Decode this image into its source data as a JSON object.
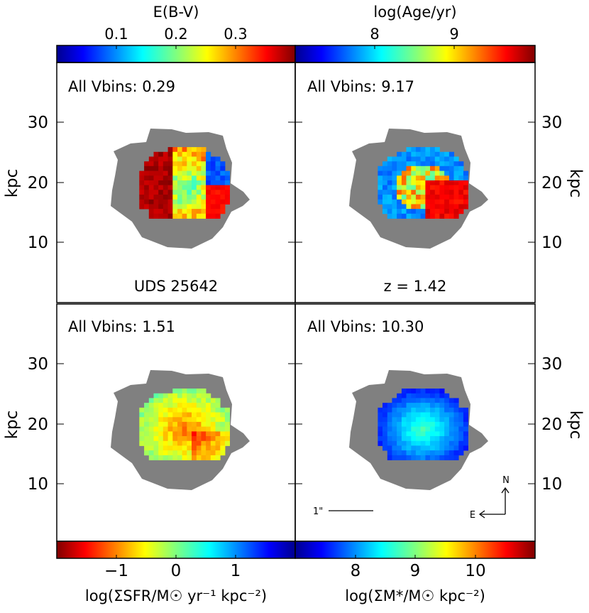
{
  "chart_data": {
    "type": "heatmap",
    "object_label": "UDS 25642",
    "redshift_label": "z = 1.42",
    "compass": {
      "north": "N",
      "east": "E"
    },
    "scale_bar_label": "1\"",
    "panels": [
      {
        "id": "ebv",
        "quantity": "E(B-V)",
        "summary": "All Vbins: 0.29",
        "colorbar": {
          "label": "E(B-V)",
          "position": "top",
          "ticks": [
            "0.1",
            "0.2",
            "0.3"
          ],
          "tick_values": [
            0.1,
            0.2,
            0.3
          ],
          "range": [
            0.0,
            0.4
          ],
          "colormap": "jet"
        },
        "ylabel": "kpc",
        "yticks": [
          "10",
          "20",
          "30"
        ],
        "ylabel_side": "left"
      },
      {
        "id": "age",
        "quantity": "log(Age/yr)",
        "summary": "All Vbins: 9.17",
        "colorbar": {
          "label": "log(Age/yr)",
          "position": "top",
          "ticks": [
            "8",
            "9"
          ],
          "tick_values": [
            8,
            9
          ],
          "range": [
            7.25,
            9.9
          ],
          "colormap": "jet"
        },
        "ylabel": "kpc",
        "yticks": [
          "10",
          "20",
          "30"
        ],
        "ylabel_side": "right"
      },
      {
        "id": "sfr",
        "quantity": "log(ΣSFR/M☉ yr⁻¹ kpc⁻²)",
        "summary": "All Vbins: 1.51",
        "colorbar": {
          "label": "log(ΣSFR/M☉ yr⁻¹ kpc⁻²)",
          "position": "bottom",
          "ticks": [
            "−1",
            "0",
            "1"
          ],
          "tick_values": [
            -1,
            0,
            1
          ],
          "range": [
            -2.0,
            2.0
          ],
          "colormap": "jet_r"
        },
        "ylabel": "kpc",
        "yticks": [
          "10",
          "20",
          "30"
        ],
        "ylabel_side": "left"
      },
      {
        "id": "mass",
        "quantity": "log(ΣM*/M☉ kpc⁻²)",
        "summary": "All Vbins: 10.30",
        "colorbar": {
          "label": "log(ΣM*/M☉ kpc⁻²)",
          "position": "bottom",
          "ticks": [
            "8",
            "9",
            "10"
          ],
          "tick_values": [
            8,
            9,
            10
          ],
          "range": [
            7.0,
            11.0
          ],
          "colormap": "jet"
        },
        "ylabel": "kpc",
        "yticks": [
          "10",
          "20",
          "30"
        ],
        "ylabel_side": "right"
      }
    ],
    "grid": false,
    "legend": "none"
  }
}
